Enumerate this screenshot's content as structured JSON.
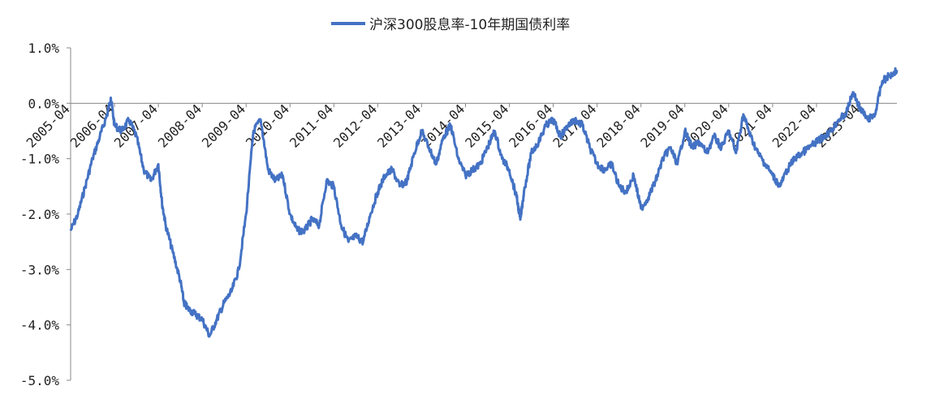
{
  "chart_data": {
    "type": "line",
    "title": "",
    "xlabel": "",
    "ylabel": "",
    "legend": {
      "position": "top-center",
      "entries": [
        "沪深300股息率-10年期国债利率"
      ]
    },
    "grid": false,
    "ylim": [
      -5.0,
      1.0
    ],
    "y_ticks": [
      1.0,
      0.0,
      -1.0,
      -2.0,
      -3.0,
      -4.0,
      -5.0
    ],
    "y_tick_labels": [
      "1.0%",
      "0.0%",
      "-1.0%",
      "-2.0%",
      "-3.0%",
      "-4.0%",
      "-5.0%"
    ],
    "x_tick_labels": [
      "2005-04",
      "2006-04",
      "2007-04",
      "2008-04",
      "2009-04",
      "2010-04",
      "2011-04",
      "2012-04",
      "2013-04",
      "2014-04",
      "2015-04",
      "2016-04",
      "2017-04",
      "2018-04",
      "2019-04",
      "2020-04",
      "2021-04",
      "2022-04",
      "2023-04"
    ],
    "x_start": "2005-04",
    "x_end": "2024-02",
    "colors": {
      "series": "#4472C4"
    },
    "series": [
      {
        "name": "沪深300股息率-10年期国债利率",
        "x": [
          "2005-04",
          "2005-06",
          "2005-08",
          "2005-10",
          "2005-12",
          "2006-02",
          "2006-03",
          "2006-04",
          "2006-06",
          "2006-08",
          "2006-10",
          "2006-12",
          "2007-02",
          "2007-04",
          "2007-05",
          "2007-06",
          "2007-08",
          "2007-10",
          "2007-11",
          "2007-12",
          "2008-02",
          "2008-04",
          "2008-06",
          "2008-08",
          "2008-10",
          "2008-12",
          "2009-02",
          "2009-04",
          "2009-06",
          "2009-08",
          "2009-10",
          "2009-12",
          "2010-02",
          "2010-04",
          "2010-06",
          "2010-08",
          "2010-10",
          "2010-12",
          "2011-02",
          "2011-04",
          "2011-06",
          "2011-08",
          "2011-10",
          "2011-12",
          "2012-02",
          "2012-04",
          "2012-06",
          "2012-08",
          "2012-10",
          "2012-12",
          "2013-02",
          "2013-04",
          "2013-06",
          "2013-08",
          "2013-10",
          "2013-12",
          "2014-02",
          "2014-04",
          "2014-06",
          "2014-08",
          "2014-10",
          "2014-12",
          "2015-02",
          "2015-04",
          "2015-06",
          "2015-07",
          "2015-08",
          "2015-10",
          "2015-12",
          "2016-02",
          "2016-04",
          "2016-06",
          "2016-08",
          "2016-10",
          "2016-12",
          "2017-02",
          "2017-04",
          "2017-06",
          "2017-08",
          "2017-10",
          "2017-12",
          "2018-02",
          "2018-04",
          "2018-06",
          "2018-08",
          "2018-10",
          "2018-12",
          "2019-02",
          "2019-04",
          "2019-06",
          "2019-08",
          "2019-10",
          "2019-12",
          "2020-02",
          "2020-04",
          "2020-06",
          "2020-08",
          "2020-10",
          "2020-12",
          "2021-02",
          "2021-04",
          "2021-06",
          "2021-08",
          "2021-10",
          "2021-12",
          "2022-02",
          "2022-04",
          "2022-06",
          "2022-08",
          "2022-10",
          "2022-12",
          "2023-02",
          "2023-04",
          "2023-06",
          "2023-08",
          "2023-10",
          "2023-12",
          "2024-02"
        ],
        "values": [
          -2.3,
          -2.0,
          -1.5,
          -1.0,
          -0.6,
          -0.2,
          0.1,
          -0.4,
          -0.5,
          -0.3,
          -0.6,
          -1.2,
          -1.4,
          -1.1,
          -1.8,
          -2.2,
          -2.7,
          -3.2,
          -3.6,
          -3.7,
          -3.8,
          -3.9,
          -4.2,
          -3.9,
          -3.6,
          -3.4,
          -3.0,
          -2.0,
          -0.5,
          -0.3,
          -1.2,
          -1.4,
          -1.3,
          -2.0,
          -2.3,
          -2.3,
          -2.1,
          -2.2,
          -1.4,
          -1.5,
          -2.2,
          -2.5,
          -2.4,
          -2.5,
          -2.0,
          -1.6,
          -1.3,
          -1.2,
          -1.5,
          -1.4,
          -0.9,
          -0.5,
          -0.8,
          -1.1,
          -0.6,
          -0.4,
          -1.0,
          -1.3,
          -1.2,
          -1.1,
          -0.8,
          -0.5,
          -1.0,
          -1.2,
          -1.7,
          -2.1,
          -1.6,
          -0.9,
          -0.7,
          -0.4,
          -0.3,
          -0.6,
          -0.4,
          -0.3,
          -0.4,
          -0.8,
          -1.1,
          -1.2,
          -1.1,
          -1.5,
          -1.6,
          -1.3,
          -1.9,
          -1.7,
          -1.4,
          -1.0,
          -0.8,
          -1.1,
          -0.5,
          -0.8,
          -0.7,
          -0.9,
          -0.6,
          -0.8,
          -0.5,
          -0.9,
          -0.2,
          -0.6,
          -0.9,
          -1.1,
          -1.3,
          -1.5,
          -1.2,
          -1.0,
          -0.9,
          -0.8,
          -0.7,
          -0.6,
          -0.5,
          -0.3,
          -0.2,
          0.2,
          -0.1,
          -0.3,
          -0.2,
          0.4,
          0.5,
          0.6
        ]
      }
    ]
  }
}
